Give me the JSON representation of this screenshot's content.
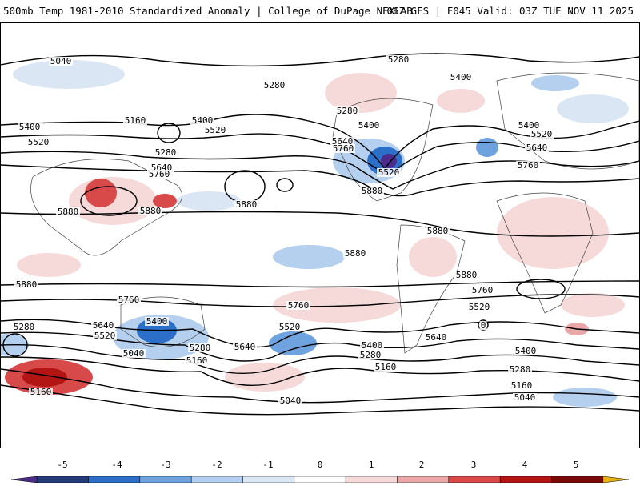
{
  "header": {
    "title_left": "500mb Temp 1981-2010 Standardized Anomaly | College of DuPage NEXLAB",
    "title_right": "06Z GFS | F045 Valid: 03Z TUE NOV 11 2025"
  },
  "contour_labels": [
    {
      "text": "5040",
      "id": "nw-5040"
    },
    {
      "text": "5280",
      "id": "n-5280"
    },
    {
      "text": "5400",
      "id": "ne-5400"
    },
    {
      "text": "5280",
      "id": "np-5280"
    },
    {
      "text": "5160",
      "id": "wp-5160"
    },
    {
      "text": "5400",
      "id": "wp-5400"
    },
    {
      "text": "5520",
      "id": "wp-5520"
    },
    {
      "text": "5400",
      "id": "w-5400"
    },
    {
      "text": "5520",
      "id": "w-5520"
    },
    {
      "text": "5280",
      "id": "wp-5280b"
    },
    {
      "text": "5640",
      "id": "wp-5640"
    },
    {
      "text": "5760",
      "id": "wp-5760"
    },
    {
      "text": "5280",
      "id": "can-5280"
    },
    {
      "text": "5400",
      "id": "can-5400"
    },
    {
      "text": "5640",
      "id": "us-5640"
    },
    {
      "text": "5760",
      "id": "us-5760"
    },
    {
      "text": "5520",
      "id": "us-5520"
    },
    {
      "text": "5880",
      "id": "us-5880"
    },
    {
      "text": "5400",
      "id": "atl-5400"
    },
    {
      "text": "5520",
      "id": "atl-5520"
    },
    {
      "text": "5640",
      "id": "atl-5640"
    },
    {
      "text": "5760",
      "id": "atl-5760"
    },
    {
      "text": "5880",
      "id": "asia-5880"
    },
    {
      "text": "5880",
      "id": "ph-5880"
    },
    {
      "text": "5880",
      "id": "cp-5880"
    },
    {
      "text": "5880",
      "id": "ep-5880"
    },
    {
      "text": "5880",
      "id": "car-5880"
    },
    {
      "text": "5880",
      "id": "sa-5880"
    },
    {
      "text": "5880",
      "id": "io-5880"
    },
    {
      "text": "5760",
      "id": "sa-5760"
    },
    {
      "text": "5760",
      "id": "sp-5760a"
    },
    {
      "text": "5760",
      "id": "sp-5760b"
    },
    {
      "text": "5520",
      "id": "sa-5520"
    },
    {
      "text": "0",
      "id": "sa-0"
    },
    {
      "text": "5280",
      "id": "sw-5280"
    },
    {
      "text": "5640",
      "id": "aus-5640"
    },
    {
      "text": "5520",
      "id": "aus-5520"
    },
    {
      "text": "5400",
      "id": "aus-5400"
    },
    {
      "text": "5040",
      "id": "aus-5040"
    },
    {
      "text": "5160",
      "id": "aus-5160"
    },
    {
      "text": "5280",
      "id": "aus-5280"
    },
    {
      "text": "5640",
      "id": "sp-5640"
    },
    {
      "text": "5520",
      "id": "sp-5520"
    },
    {
      "text": "5400",
      "id": "sp-5400"
    },
    {
      "text": "5280",
      "id": "sp-5280"
    },
    {
      "text": "5160",
      "id": "sp-5160"
    },
    {
      "text": "5640",
      "id": "satl-5640"
    },
    {
      "text": "5400",
      "id": "satl-5400"
    },
    {
      "text": "5280",
      "id": "satl-5280"
    },
    {
      "text": "5160",
      "id": "satl-5160"
    },
    {
      "text": "5040",
      "id": "satl-5040"
    },
    {
      "text": "5040",
      "id": "so-5040"
    },
    {
      "text": "5160",
      "id": "sw-5160"
    }
  ],
  "colorbar": {
    "ticks": [
      "-5",
      "-4",
      "-3",
      "-2",
      "-1",
      "0",
      "1",
      "2",
      "3",
      "4",
      "5"
    ],
    "colors": [
      "#4b2c8c",
      "#253a78",
      "#2b6fc9",
      "#6ea3e0",
      "#b5cfee",
      "#dbe6f5",
      "#ffffff",
      "#f6dada",
      "#e9a7a7",
      "#d84a4a",
      "#b31515",
      "#7a0a0a",
      "#e8b214"
    ]
  }
}
